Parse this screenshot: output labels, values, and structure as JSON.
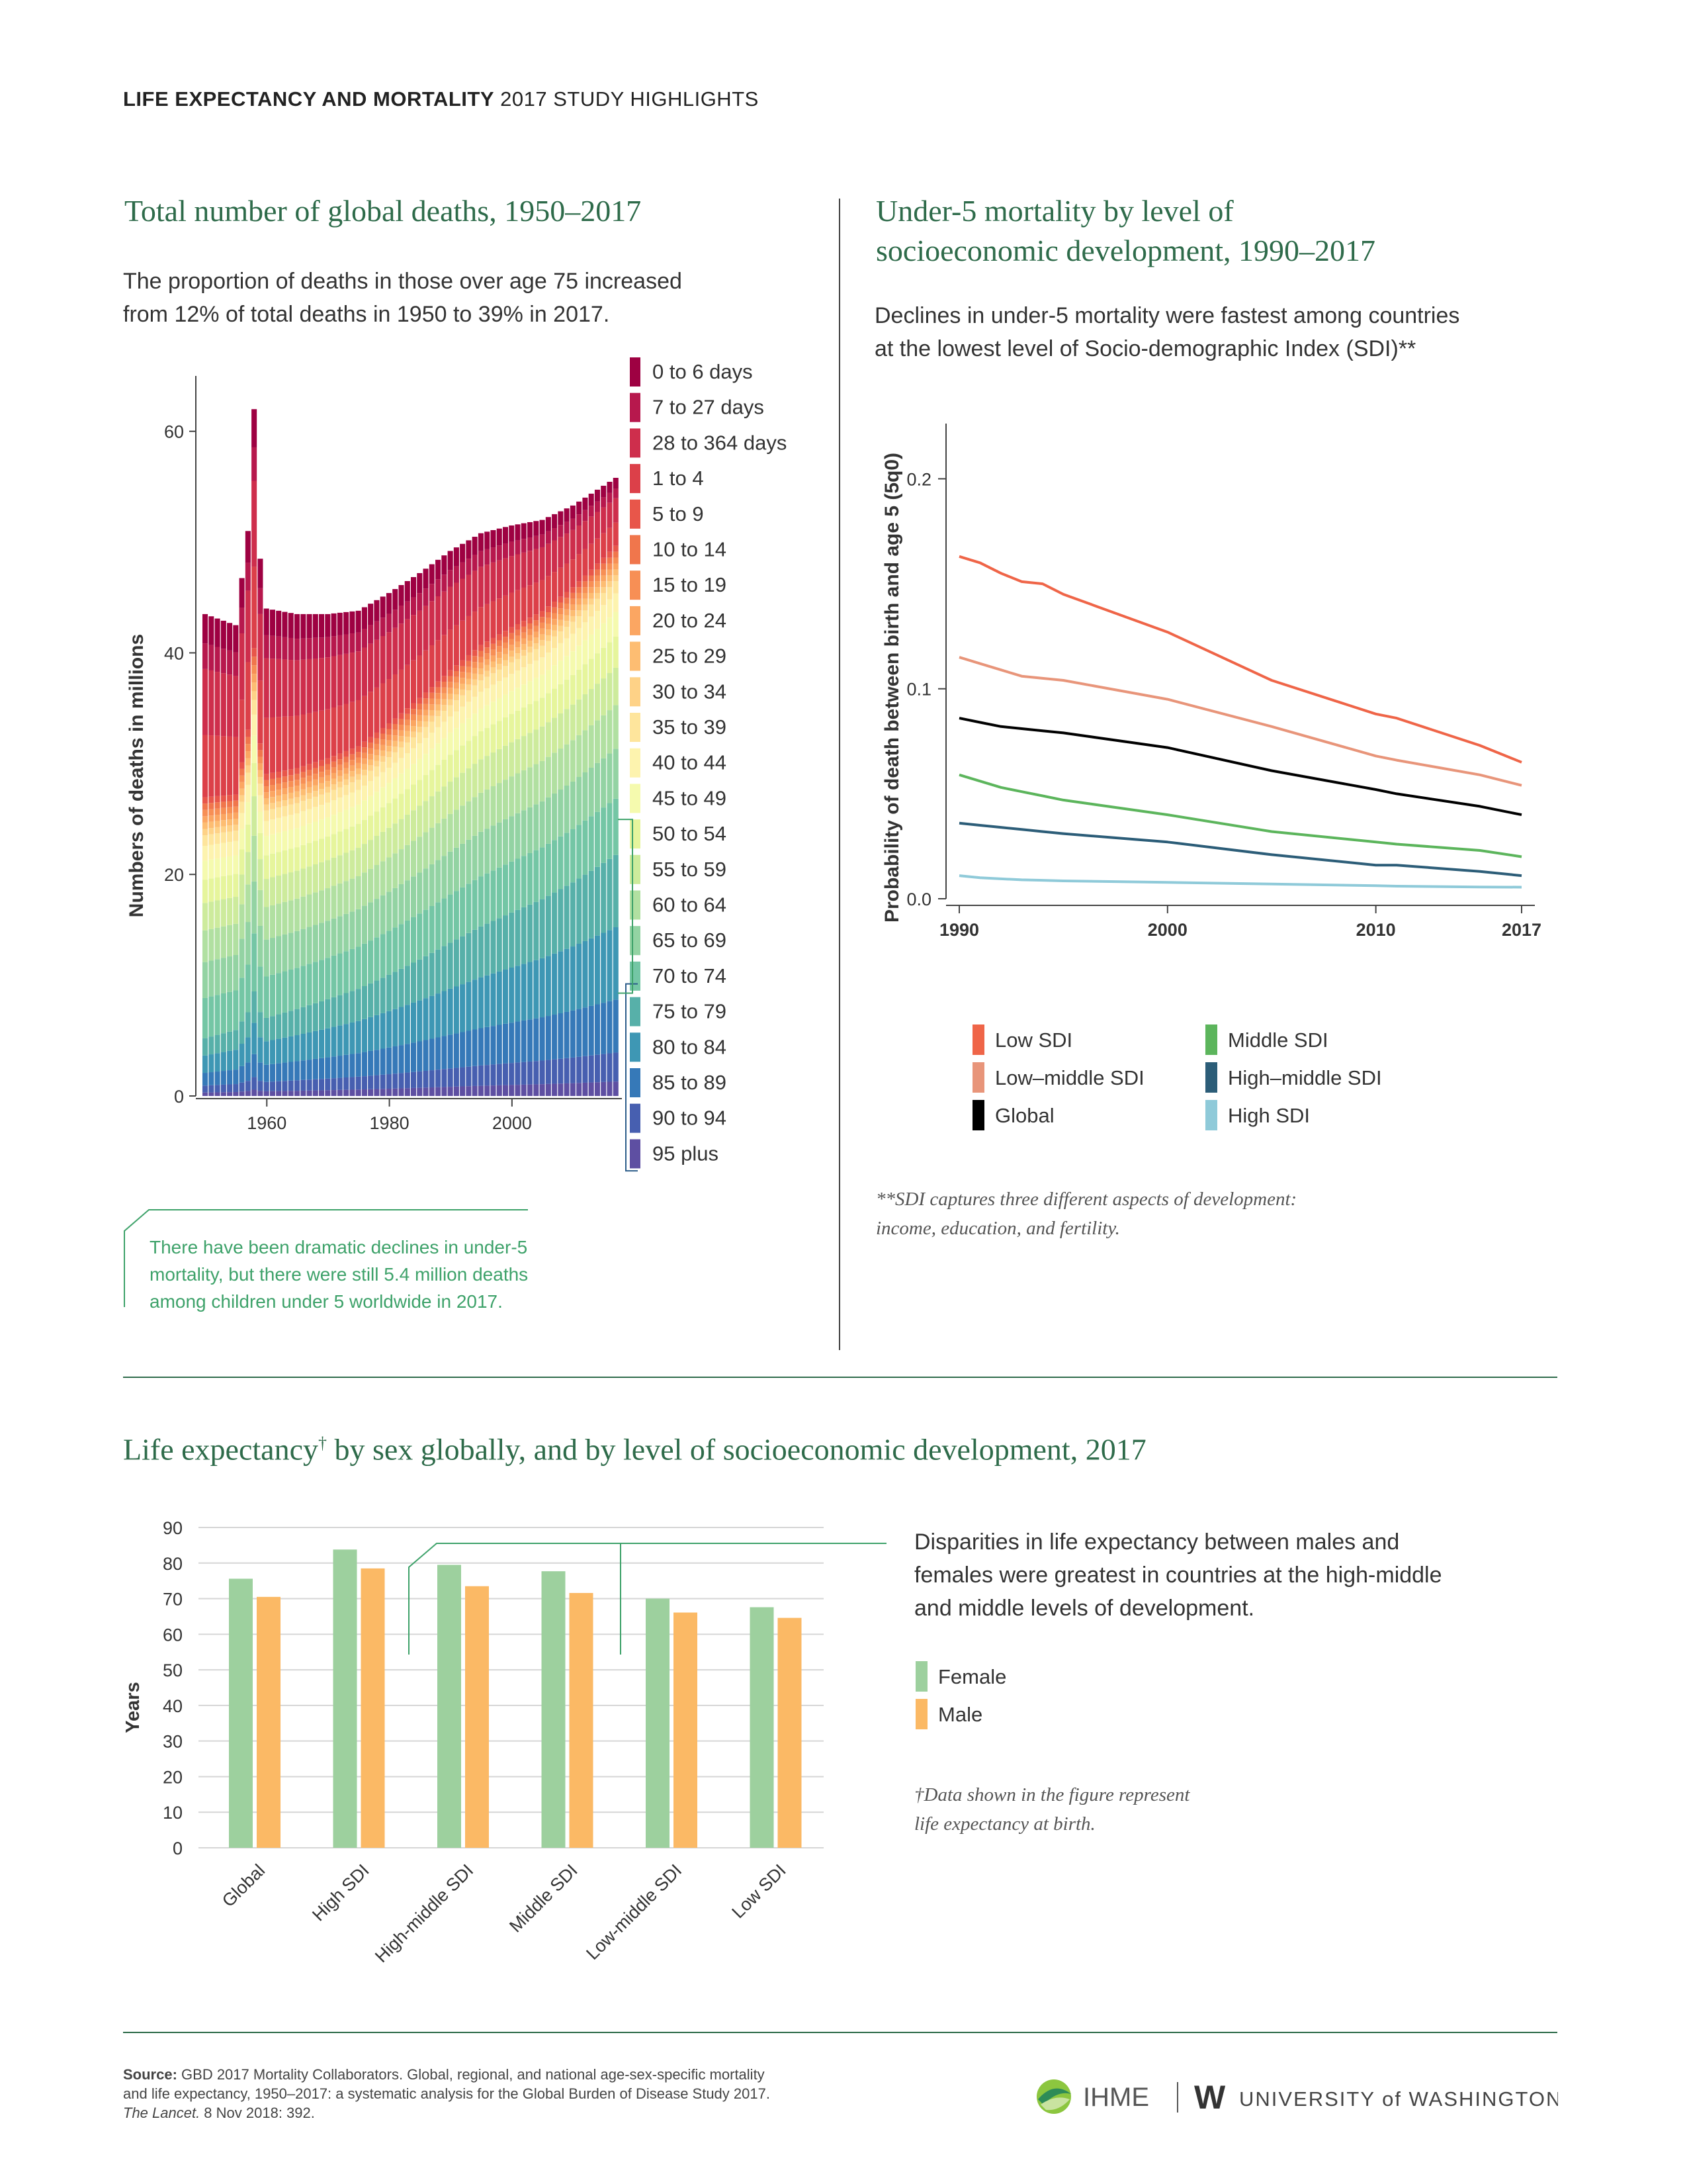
{
  "header": {
    "bold": "LIFE EXPECTANCY AND MORTALITY",
    "rest": " 2017 STUDY HIGHLIGHTS"
  },
  "deaths_panel": {
    "title": "Total number of global deaths, 1950–2017",
    "subtitle_1": "The proportion of deaths in those over age 75 increased",
    "subtitle_2": "from 12% of total deaths in 1950 to 39% in 2017.",
    "callout_1": "There have been dramatic declines in under-5",
    "callout_2": "mortality, but there were still 5.4 million deaths",
    "callout_3": "among children under 5 worldwide in 2017."
  },
  "u5_panel": {
    "title_1": "Under-5 mortality by level of",
    "title_2": "socioeconomic development, 1990–2017",
    "subtitle_1": "Declines in under-5 mortality were fastest among countries",
    "subtitle_2": "at the lowest level of Socio-demographic Index (SDI)**",
    "footnote_1": "**SDI captures three different aspects of development:",
    "footnote_2": "income, education, and fertility."
  },
  "le_panel": {
    "title_1": "Life expectancy",
    "title_dagger": "†",
    "title_2": " by sex globally, and by level of socioeconomic development, 2017",
    "annotation_1": "Disparities in life expectancy between males and",
    "annotation_2": "females were greatest in countries at the high-middle",
    "annotation_3": "and middle levels of development.",
    "footnote_1": "†Data shown in the figure represent",
    "footnote_2": "life expectancy at birth."
  },
  "source": {
    "label": "Source:",
    "line_1": " GBD 2017 Mortality Collaborators. Global, regional, and national age-sex-specific mortality",
    "line_2": "and life expectancy, 1950–2017: a systematic analysis for the Global Burden of Disease Study 2017.",
    "journal": "The Lancet.",
    "line_3": " 8 Nov 2018: 392."
  },
  "logos": {
    "ihme": "IHME",
    "uw_letter": "W",
    "uw_name": "UNIVERSITY of WASHINGTON"
  },
  "chart_data": [
    {
      "type": "area",
      "stacked": true,
      "ylabel": "Numbers of deaths in millions",
      "ylim": [
        0,
        65
      ],
      "yticks": [
        0,
        20,
        40,
        60
      ],
      "xticks": [
        1960,
        1980,
        2000
      ],
      "x_start": 1950,
      "x_end": 2017,
      "totals": {
        "1950": 43.5,
        "1955": 42.5,
        "1957": 51,
        "1958": 62,
        "1959": 48.5,
        "1960": 44,
        "1965": 43.5,
        "1970": 43.5,
        "1975": 43.8,
        "1980": 45.4,
        "1985": 47.2,
        "1990": 49.2,
        "1995": 50.8,
        "2000": 51.5,
        "2005": 52,
        "2010": 53.3,
        "2017": 55.8
      },
      "share_over_75": {
        "1950": 0.12,
        "2017": 0.39
      },
      "legend": [
        "0 to 6 days",
        "7 to 27 days",
        "28 to 364 days",
        "1 to 4",
        "5 to 9",
        "10 to 14",
        "15 to 19",
        "20 to 24",
        "25 to 29",
        "30 to 34",
        "35 to 39",
        "40 to 44",
        "45 to 49",
        "50 to 54",
        "55 to 59",
        "60 to 64",
        "65 to 69",
        "70 to 74",
        "75 to 79",
        "80 to 84",
        "85 to 89",
        "90 to 94",
        "95 plus"
      ],
      "colors": [
        "#9e0142",
        "#b7184d",
        "#ce2e4c",
        "#dc4049",
        "#e8564a",
        "#f0764c",
        "#f78f55",
        "#fba662",
        "#fdbd72",
        "#fed287",
        "#fee59c",
        "#fdf3ae",
        "#f5faae",
        "#e6f59c",
        "#cdeb9c",
        "#b1e0a1",
        "#93d3a3",
        "#74c6a5",
        "#57b0a9",
        "#3e97b4",
        "#3679b8",
        "#475fb0",
        "#5e4fa2"
      ]
    },
    {
      "type": "line",
      "ylabel": "Probability of death between birth and age 5 (5q0)",
      "ylim": [
        0,
        0.22
      ],
      "yticks": [
        0.0,
        0.1,
        0.2
      ],
      "xticks": [
        1990,
        2000,
        2010,
        2017
      ],
      "x": [
        1990,
        1991,
        1992,
        1993,
        1994,
        1995,
        2000,
        2005,
        2010,
        2011,
        2015,
        2017
      ],
      "series": [
        {
          "name": "Low SDI",
          "color": "#ef6548",
          "values": [
            0.163,
            0.16,
            0.155,
            0.151,
            0.15,
            0.145,
            0.127,
            0.104,
            0.088,
            0.086,
            0.073,
            0.065
          ]
        },
        {
          "name": "Low–middle SDI",
          "color": "#e8957a",
          "values": [
            0.115,
            0.112,
            0.109,
            0.106,
            0.105,
            0.104,
            0.095,
            0.082,
            0.068,
            0.066,
            0.059,
            0.054
          ]
        },
        {
          "name": "Global",
          "color": "#000000",
          "values": [
            0.086,
            0.084,
            0.082,
            0.081,
            0.08,
            0.079,
            0.072,
            0.061,
            0.052,
            0.05,
            0.044,
            0.04
          ]
        },
        {
          "name": "Middle SDI",
          "color": "#5cb55c",
          "values": [
            0.059,
            0.056,
            0.053,
            0.051,
            0.049,
            0.047,
            0.04,
            0.032,
            0.027,
            0.026,
            0.023,
            0.02
          ]
        },
        {
          "name": "High–middle SDI",
          "color": "#2c5d78",
          "values": [
            0.036,
            0.035,
            0.034,
            0.033,
            0.032,
            0.031,
            0.027,
            0.021,
            0.016,
            0.016,
            0.013,
            0.011
          ]
        },
        {
          "name": "High SDI",
          "color": "#8fcad9",
          "values": [
            0.011,
            0.01,
            0.0095,
            0.009,
            0.0088,
            0.0085,
            0.0078,
            0.007,
            0.0062,
            0.006,
            0.0056,
            0.0055
          ]
        }
      ]
    },
    {
      "type": "bar",
      "ylabel": "Years",
      "ylim": [
        0,
        90
      ],
      "yticks": [
        0,
        10,
        20,
        30,
        40,
        50,
        60,
        70,
        80,
        90
      ],
      "categories": [
        "Global",
        "High SDI",
        "High-middle SDI",
        "Middle SDI",
        "Low-middle SDI",
        "Low SDI"
      ],
      "series": [
        {
          "name": "Female",
          "color": "#9dd09e",
          "values": [
            75.6,
            83.8,
            79.5,
            77.7,
            70.0,
            67.6
          ]
        },
        {
          "name": "Male",
          "color": "#fbb965",
          "values": [
            70.5,
            78.5,
            73.5,
            71.6,
            66.1,
            64.6
          ]
        }
      ]
    }
  ]
}
